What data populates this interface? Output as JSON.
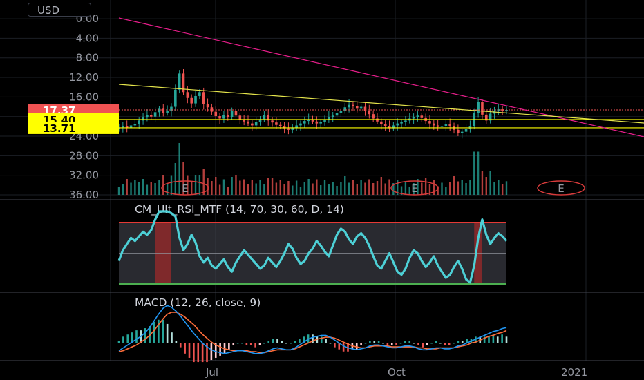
{
  "currency": "USD",
  "price_panel": {
    "y_ticks": [
      "36.00",
      "32.00",
      "28.00",
      "24.00",
      "20.00",
      "16.00",
      "12.00",
      "8.00",
      "4.00",
      "0.00"
    ],
    "tags": [
      {
        "label": "17.37",
        "value": 17.37,
        "bg": "#f05252",
        "fg": "#ffffff"
      },
      {
        "label": "15.40",
        "value": 15.4,
        "bg": "#ffff00",
        "fg": "#000000"
      },
      {
        "label": "13.71",
        "value": 13.71,
        "bg": "#ffff00",
        "fg": "#000000"
      }
    ],
    "earnings_markers": [
      "E",
      "E",
      "E"
    ]
  },
  "rsi_panel": {
    "title": "CM_Ult_RSI_MTF (14, 70, 30, 60, D, 14)"
  },
  "macd_panel": {
    "title": "MACD (12, 26, close, 9)"
  },
  "x_axis": {
    "labels": [
      "Jul",
      "Oct",
      "2021"
    ]
  },
  "colors": {
    "up": "#26a69a",
    "down": "#ef5350",
    "trend_magenta": "#e91e8c",
    "trend_yellow": "#e5e54c",
    "rsi_line": "#4dd0d6",
    "rsi_upper": "#e53935",
    "rsi_lower": "#4caf50",
    "macd_line": "#2196f3",
    "signal_line": "#ff6d3a"
  },
  "chart_data": [
    {
      "type": "candlestick",
      "ylim": [
        0,
        37
      ],
      "y_ticks": [
        0,
        4,
        8,
        12,
        16,
        20,
        24,
        28,
        32,
        36
      ],
      "close": [
        13.8,
        14.0,
        13.7,
        14.2,
        14.5,
        15.2,
        15.8,
        16.3,
        16.0,
        16.9,
        17.6,
        16.8,
        17.1,
        18.0,
        21.5,
        24.8,
        21.0,
        19.8,
        18.7,
        20.2,
        21.0,
        18.5,
        17.9,
        17.0,
        16.1,
        15.6,
        16.3,
        15.9,
        17.1,
        16.2,
        15.4,
        15.0,
        14.6,
        14.2,
        14.9,
        15.5,
        16.3,
        15.2,
        14.8,
        14.3,
        14.0,
        13.6,
        13.3,
        13.7,
        14.2,
        14.6,
        15.1,
        15.4,
        15.0,
        14.6,
        14.9,
        15.3,
        15.9,
        16.2,
        16.7,
        17.2,
        17.9,
        18.4,
        18.1,
        17.6,
        18.0,
        17.2,
        16.5,
        15.6,
        15.0,
        14.4,
        14.0,
        13.6,
        14.2,
        14.6,
        14.9,
        15.2,
        15.6,
        15.9,
        16.2,
        15.7,
        15.1,
        14.6,
        14.2,
        13.9,
        14.1,
        14.4,
        14.0,
        13.3,
        12.6,
        12.9,
        13.5,
        14.0,
        16.8,
        19.0,
        16.4,
        15.2,
        16.6,
        17.2,
        17.5,
        17.1,
        17.37
      ],
      "volume_color_by_direction": true
    },
    {
      "type": "line",
      "name": "",
      "ylim": [
        0,
        100
      ],
      "levels": [
        {
          "y": 70
        },
        {
          "y": 30
        },
        {
          "y": 50
        }
      ],
      "values": [
        45,
        52,
        56,
        60,
        58,
        61,
        64,
        62,
        65,
        72,
        80,
        85,
        78,
        76,
        74,
        60,
        52,
        56,
        62,
        57,
        48,
        44,
        47,
        42,
        40,
        43,
        46,
        41,
        38,
        44,
        48,
        52,
        49,
        46,
        43,
        40,
        42,
        47,
        44,
        41,
        45,
        50,
        56,
        53,
        47,
        43,
        45,
        50,
        53,
        58,
        55,
        51,
        48,
        55,
        62,
        66,
        64,
        59,
        56,
        61,
        63,
        60,
        55,
        48,
        42,
        40,
        45,
        50,
        44,
        38,
        36,
        40,
        47,
        52,
        50,
        45,
        41,
        44,
        48,
        42,
        38,
        34,
        36,
        41,
        45,
        40,
        33,
        31,
        42,
        60,
        72,
        62,
        56,
        60,
        63,
        61,
        58
      ],
      "highlight_bands": [
        [
          9,
          13
        ],
        [
          88,
          90
        ]
      ]
    },
    {
      "type": "line",
      "name": "",
      "series": [
        {
          "name": "",
          "values": [
            -0.8,
            -0.5,
            -0.2,
            0.1,
            0.4,
            0.7,
            1.1,
            1.6,
            2.3,
            3.0,
            3.6,
            3.9,
            3.7,
            3.3,
            2.8,
            2.2,
            1.6,
            1.0,
            0.5,
            0.0,
            -0.4,
            -0.7,
            -0.9,
            -1.0,
            -1.1,
            -1.0,
            -0.9,
            -0.8,
            -0.8,
            -0.9,
            -1.0,
            -1.1,
            -1.1,
            -1.0,
            -0.8,
            -0.6,
            -0.5,
            -0.6,
            -0.7,
            -0.7,
            -0.5,
            -0.2,
            0.1,
            0.4,
            0.6,
            0.7,
            0.8,
            0.8,
            0.6,
            0.3,
            0.0,
            -0.3,
            -0.5,
            -0.6,
            -0.7,
            -0.6,
            -0.5,
            -0.3,
            -0.2,
            -0.2,
            -0.3,
            -0.4,
            -0.5,
            -0.5,
            -0.4,
            -0.3,
            -0.3,
            -0.4,
            -0.6,
            -0.7,
            -0.7,
            -0.6,
            -0.5,
            -0.5,
            -0.6,
            -0.6,
            -0.5,
            -0.3,
            -0.2,
            0.0,
            0.2,
            0.4,
            0.6,
            0.8,
            1.0,
            1.2,
            1.3,
            1.5,
            1.6
          ]
        },
        {
          "name": "",
          "values": [
            -0.9,
            -0.8,
            -0.6,
            -0.4,
            -0.2,
            0.1,
            0.4,
            0.8,
            1.3,
            1.9,
            2.5,
            3.0,
            3.2,
            3.2,
            3.0,
            2.7,
            2.3,
            1.9,
            1.4,
            0.9,
            0.5,
            0.1,
            -0.2,
            -0.4,
            -0.6,
            -0.7,
            -0.8,
            -0.8,
            -0.8,
            -0.8,
            -0.9,
            -0.9,
            -1.0,
            -1.0,
            -0.9,
            -0.8,
            -0.7,
            -0.7,
            -0.7,
            -0.7,
            -0.6,
            -0.4,
            -0.2,
            0.0,
            0.2,
            0.4,
            0.5,
            0.6,
            0.6,
            0.5,
            0.3,
            0.1,
            -0.1,
            -0.3,
            -0.4,
            -0.5,
            -0.5,
            -0.4,
            -0.3,
            -0.3,
            -0.3,
            -0.3,
            -0.4,
            -0.4,
            -0.4,
            -0.4,
            -0.4,
            -0.4,
            -0.5,
            -0.5,
            -0.6,
            -0.6,
            -0.6,
            -0.5,
            -0.5,
            -0.5,
            -0.5,
            -0.4,
            -0.3,
            -0.2,
            0.0,
            0.1,
            0.3,
            0.5,
            0.7,
            0.8,
            1.0,
            1.1,
            1.3
          ]
        }
      ],
      "ylim": [
        -1.4,
        4.2
      ]
    }
  ]
}
